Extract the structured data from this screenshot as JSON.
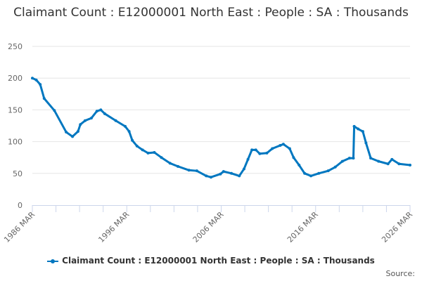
{
  "chart_data": {
    "type": "line",
    "title": "Claimant Count : E12000001 North East : People : SA : Thousands",
    "xlabel": "",
    "ylabel": "",
    "ylim": [
      0,
      250
    ],
    "yticks": [
      "0",
      "50",
      "100",
      "150",
      "200",
      "250"
    ],
    "xtick_labels": [
      "1986 MAR",
      "1996 MAR",
      "2006 MAR",
      "2016 MAR",
      "2026 MAR"
    ],
    "grid": true,
    "legend": "bottom",
    "color": "#0077c0",
    "series": [
      {
        "name": "Claimant Count : E12000001 North East : People : SA : Thousands",
        "x": [
          "1986-03",
          "1986-08",
          "1987-01",
          "1987-06",
          "1988-07",
          "1989-10",
          "1990-06",
          "1991-01",
          "1991-04",
          "1991-10",
          "1992-06",
          "1993-01",
          "1993-06",
          "1993-11",
          "1995-01",
          "1996-01",
          "1996-06",
          "1996-10",
          "1997-04",
          "1997-11",
          "1998-06",
          "1999-02",
          "1999-11",
          "2000-10",
          "2001-08",
          "2002-10",
          "2003-08",
          "2004-08",
          "2005-02",
          "2006-02",
          "2006-06",
          "2007-04",
          "2008-02",
          "2008-08",
          "2009-01",
          "2009-06",
          "2009-11",
          "2010-04",
          "2011-01",
          "2011-08",
          "2012-06",
          "2012-10",
          "2013-06",
          "2013-11",
          "2014-06",
          "2015-01",
          "2015-09",
          "2016-07",
          "2017-07",
          "2018-04",
          "2019-01",
          "2019-10",
          "2020-03",
          "2020-04",
          "2020-09",
          "2021-03",
          "2021-07",
          "2022-01",
          "2022-11",
          "2023-11",
          "2024-04",
          "2025-01",
          "2026-03"
        ],
        "values": [
          200,
          197,
          190,
          168,
          149,
          115,
          108,
          116,
          127,
          133,
          137,
          148,
          150,
          144,
          133,
          124,
          116,
          102,
          93,
          87,
          82,
          83,
          75,
          66,
          61,
          55,
          54,
          46,
          44,
          49,
          53,
          50,
          46,
          57,
          72,
          87,
          87,
          81,
          82,
          89,
          94,
          96,
          89,
          75,
          63,
          50,
          46,
          50,
          54,
          60,
          69,
          74,
          74,
          124,
          120,
          116,
          98,
          74,
          69,
          65,
          72,
          65,
          63
        ]
      }
    ]
  },
  "legend_label": "Claimant Count : E12000001 North East : People : SA : Thousands",
  "source_label": "Source:"
}
